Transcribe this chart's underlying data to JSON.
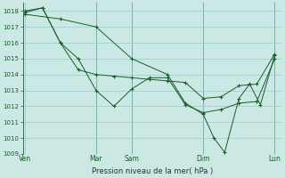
{
  "bg_color": "#cce8e4",
  "grid_color": "#99cccc",
  "line_color": "#1a5c2a",
  "marker_color": "#1a5c2a",
  "xlabel": "Pression niveau de la mer( hPa )",
  "ylim": [
    1009,
    1018.5
  ],
  "yticks": [
    1009,
    1010,
    1011,
    1012,
    1013,
    1014,
    1015,
    1016,
    1017,
    1018
  ],
  "xtick_labels": [
    "Ven",
    "Mar",
    "Sam",
    "Dim",
    "Lun"
  ],
  "xtick_positions": [
    0,
    2,
    3,
    5,
    7
  ],
  "vline_positions": [
    2,
    3,
    5,
    7
  ],
  "line1_x": [
    0,
    0.5,
    1.0,
    1.5,
    2.0,
    2.5,
    3.0,
    3.5,
    4.0,
    4.5,
    5.0,
    5.5,
    6.0,
    6.5,
    7.0
  ],
  "line1_y": [
    1018.0,
    1018.2,
    1016.0,
    1014.3,
    1014.0,
    1013.9,
    1013.8,
    1013.7,
    1013.6,
    1013.5,
    1012.5,
    1012.6,
    1013.3,
    1013.4,
    1015.3
  ],
  "line2_x": [
    0,
    0.5,
    1.0,
    1.5,
    2.0,
    2.5,
    3.0,
    3.5,
    4.0,
    4.5,
    5.0,
    5.5,
    6.0,
    6.5,
    7.0
  ],
  "line2_y": [
    1017.9,
    1018.2,
    1016.0,
    1015.0,
    1013.0,
    1012.0,
    1013.1,
    1013.8,
    1013.8,
    1012.1,
    1011.6,
    1011.8,
    1012.2,
    1012.3,
    1015.0
  ],
  "line3_x": [
    0,
    1.0,
    2.0,
    3.0,
    4.0,
    4.5,
    5.0,
    5.3,
    5.6,
    6.0,
    6.3,
    6.6,
    7.0
  ],
  "line3_y": [
    1017.8,
    1017.5,
    1017.0,
    1015.0,
    1014.0,
    1012.2,
    1011.5,
    1010.0,
    1009.1,
    1012.5,
    1013.4,
    1012.1,
    1015.2
  ]
}
